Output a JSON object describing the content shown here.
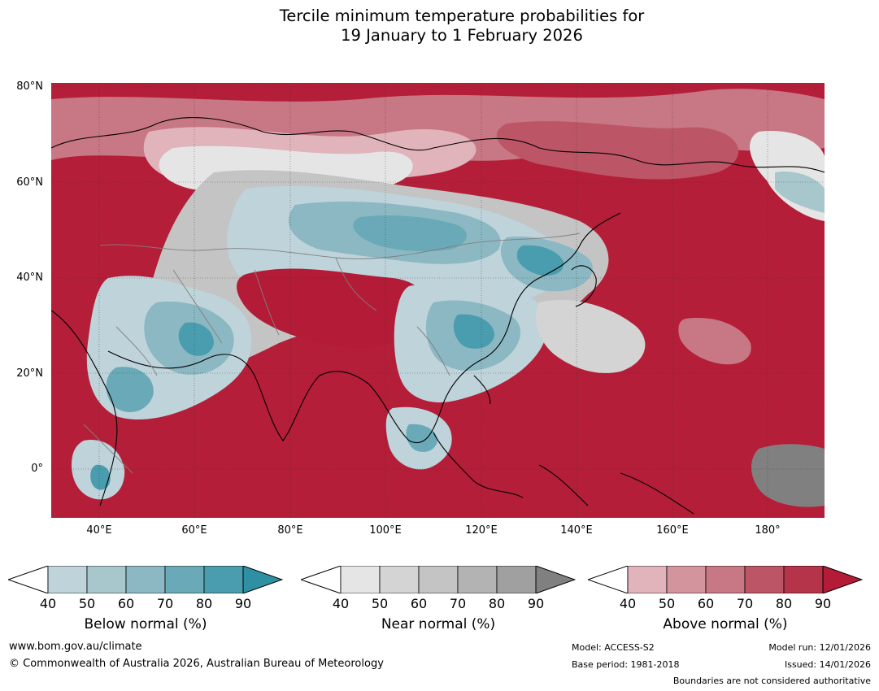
{
  "title_line1": "Tercile minimum temperature probabilities for",
  "title_line2": "19 January to 1 February 2026",
  "map": {
    "lat_labels": [
      "80°N",
      "60°N",
      "40°N",
      "20°N",
      "0°"
    ],
    "lon_labels": [
      "40°E",
      "60°E",
      "80°E",
      "100°E",
      "120°E",
      "140°E",
      "160°E",
      "180°"
    ],
    "region": "Asia and western Pacific"
  },
  "legend": {
    "below": {
      "title": "Below normal (%)",
      "ticks": [
        "40",
        "50",
        "60",
        "70",
        "80",
        "90"
      ],
      "colors": [
        "#bfd3da",
        "#a7c7cd",
        "#8bb8c2",
        "#6aa9b7",
        "#4a9dae",
        "#2f8fa3"
      ]
    },
    "near": {
      "title": "Near normal (%)",
      "ticks": [
        "40",
        "50",
        "60",
        "70",
        "80",
        "90"
      ],
      "colors": [
        "#e5e5e5",
        "#d4d4d4",
        "#c4c4c4",
        "#b3b3b3",
        "#a0a0a0",
        "#808080"
      ]
    },
    "above": {
      "title": "Above normal (%)",
      "ticks": [
        "40",
        "50",
        "60",
        "70",
        "80",
        "90"
      ],
      "colors": [
        "#e1b4bb",
        "#d3949d",
        "#c87784",
        "#bc5565",
        "#b63449",
        "#b31b37"
      ]
    }
  },
  "footer": {
    "website": "www.bom.gov.au/climate",
    "copyright": "© Commonwealth of Australia 2026, Australian Bureau of Meteorology",
    "model": "Model: ACCESS-S2",
    "base_period": "Base period: 1981-2018",
    "model_run": "Model run: 12/01/2026",
    "issued": "Issued: 14/01/2026",
    "disclaimer": "Boundaries are not considered authoritative"
  }
}
